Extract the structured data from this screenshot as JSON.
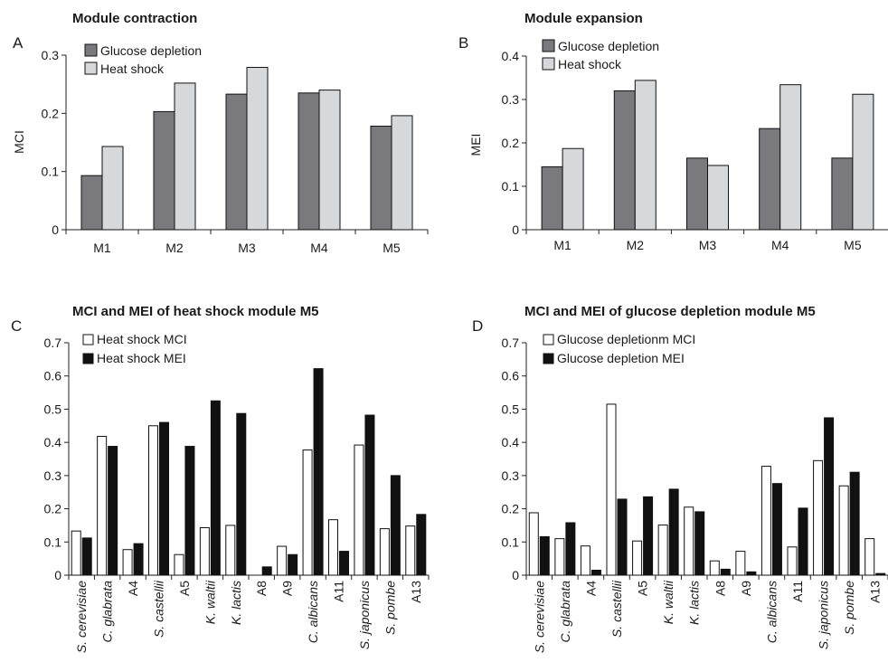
{
  "chart_data": [
    {
      "type": "bar",
      "panel": "A",
      "title": "Module contraction",
      "xlabel": "",
      "ylabel": "MCI",
      "ylim": [
        0,
        0.3
      ],
      "yticks": [
        "0",
        "0.1",
        "0.2",
        "0.3"
      ],
      "categories": [
        "M1",
        "M2",
        "M3",
        "M4",
        "M5"
      ],
      "series": [
        {
          "name": "Glucose depletion",
          "color": "#7a7a7e",
          "values": [
            0.093,
            0.203,
            0.233,
            0.235,
            0.178
          ]
        },
        {
          "name": "Heat shock",
          "color": "#d7d8da",
          "values": [
            0.143,
            0.252,
            0.279,
            0.24,
            0.196
          ]
        }
      ],
      "legend_position": "top-left",
      "grid": false
    },
    {
      "type": "bar",
      "panel": "B",
      "title": "Module expansion",
      "xlabel": "",
      "ylabel": "MEI",
      "ylim": [
        0,
        0.4
      ],
      "yticks": [
        "0",
        "0.1",
        "0.2",
        "0.3",
        "0.4"
      ],
      "categories": [
        "M1",
        "M2",
        "M3",
        "M4",
        "M5"
      ],
      "series": [
        {
          "name": "Glucose depletion",
          "color": "#7a7a7e",
          "values": [
            0.145,
            0.32,
            0.165,
            0.233,
            0.165
          ]
        },
        {
          "name": "Heat shock",
          "color": "#d7d8da",
          "values": [
            0.187,
            0.344,
            0.148,
            0.334,
            0.312
          ]
        }
      ],
      "legend_position": "top-left",
      "grid": false
    },
    {
      "type": "bar",
      "panel": "C",
      "title": "MCI and MEI of heat shock module M5",
      "xlabel": "",
      "ylabel": "",
      "ylim": [
        0,
        0.7
      ],
      "yticks": [
        "0",
        "0.1",
        "0.2",
        "0.3",
        "0.4",
        "0.5",
        "0.6",
        "0.7"
      ],
      "categories": [
        "S. cerevisiae",
        "C. glabrata",
        "A4",
        "S. castellii",
        "A5",
        "K. waltii",
        "K. lactis",
        "A8",
        "A9",
        "C. albicans",
        "A11",
        "S. japonicus",
        "S. pombe",
        "A13"
      ],
      "italic_categories": [
        true,
        true,
        false,
        true,
        false,
        true,
        true,
        false,
        false,
        true,
        false,
        true,
        true,
        false
      ],
      "series": [
        {
          "name": "Heat shock MCI",
          "color": "#ffffff",
          "values": [
            0.133,
            0.418,
            0.077,
            0.45,
            0.062,
            0.143,
            0.15,
            0.0,
            0.087,
            0.377,
            0.167,
            0.392,
            0.14,
            0.148
          ]
        },
        {
          "name": "Heat shock MEI",
          "color": "#111111",
          "values": [
            0.112,
            0.388,
            0.095,
            0.46,
            0.388,
            0.525,
            0.487,
            0.025,
            0.062,
            0.622,
            0.072,
            0.482,
            0.3,
            0.183
          ]
        }
      ],
      "legend_position": "top-left",
      "grid": false
    },
    {
      "type": "bar",
      "panel": "D",
      "title": "MCI and MEI of glucose depletion module M5",
      "xlabel": "",
      "ylabel": "",
      "ylim": [
        0,
        0.7
      ],
      "yticks": [
        "0",
        "0.1",
        "0.2",
        "0.3",
        "0.4",
        "0.5",
        "0.6",
        "0.7"
      ],
      "categories": [
        "S. cerevisiae",
        "C. glabrata",
        "A4",
        "S. castellii",
        "A5",
        "K. waltii",
        "K. lactis",
        "A8",
        "A9",
        "C. albicans",
        "A11",
        "S. japonicus",
        "S. pombe",
        "A13"
      ],
      "italic_categories": [
        true,
        true,
        false,
        true,
        false,
        true,
        true,
        false,
        false,
        true,
        false,
        true,
        true,
        false
      ],
      "series": [
        {
          "name": "Glucose depletionm MCI",
          "color": "#ffffff",
          "values": [
            0.188,
            0.11,
            0.088,
            0.515,
            0.103,
            0.151,
            0.205,
            0.043,
            0.072,
            0.328,
            0.085,
            0.345,
            0.269,
            0.11
          ]
        },
        {
          "name": "Glucose depletion MEI",
          "color": "#111111",
          "values": [
            0.116,
            0.158,
            0.015,
            0.229,
            0.236,
            0.259,
            0.191,
            0.018,
            0.01,
            0.276,
            0.202,
            0.474,
            0.31,
            0.005
          ]
        }
      ],
      "legend_position": "top-left",
      "grid": false
    }
  ]
}
